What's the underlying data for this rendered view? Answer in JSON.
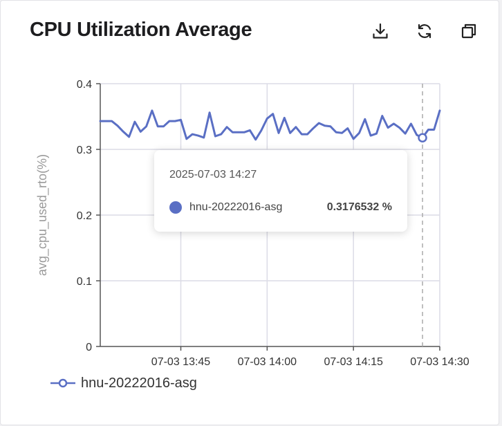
{
  "header": {
    "title": "CPU Utilization Average",
    "icons": [
      "download-icon",
      "refresh-icon",
      "copy-icon"
    ]
  },
  "colors": {
    "series": "#5a6fc4",
    "grid": "#dcdce6",
    "axis": "#555555"
  },
  "tooltip": {
    "time": "2025-07-03 14:27",
    "series_name": "hnu-20222016-asg",
    "value_text": "0.3176532 %"
  },
  "legend": {
    "label": "hnu-20222016-asg"
  },
  "chart_data": {
    "type": "line",
    "title": "CPU Utilization Average",
    "ylabel": "avg_cpu_used_rto(%)",
    "xlabel": "",
    "ylim": [
      0,
      0.4
    ],
    "yticks": [
      "0",
      "0.1",
      "0.2",
      "0.3",
      "0.4"
    ],
    "xlim": [
      "07-03 13:31",
      "07-03 14:30"
    ],
    "xticks": [
      "07-03 13:45",
      "07-03 14:00",
      "07-03 14:15",
      "07-03 14:30"
    ],
    "grid": true,
    "legend_position": "bottom-left",
    "highlight": {
      "x": "07-03 14:27",
      "y": 0.3176532
    },
    "series": [
      {
        "name": "hnu-20222016-asg",
        "x": [
          "13:31",
          "13:32",
          "13:33",
          "13:34",
          "13:35",
          "13:36",
          "13:37",
          "13:38",
          "13:39",
          "13:40",
          "13:41",
          "13:42",
          "13:43",
          "13:44",
          "13:45",
          "13:46",
          "13:47",
          "13:48",
          "13:49",
          "13:50",
          "13:51",
          "13:52",
          "13:53",
          "13:54",
          "13:55",
          "13:56",
          "13:57",
          "13:58",
          "13:59",
          "14:00",
          "14:01",
          "14:02",
          "14:03",
          "14:04",
          "14:05",
          "14:06",
          "14:07",
          "14:08",
          "14:09",
          "14:10",
          "14:11",
          "14:12",
          "14:13",
          "14:14",
          "14:15",
          "14:16",
          "14:17",
          "14:18",
          "14:19",
          "14:20",
          "14:21",
          "14:22",
          "14:23",
          "14:24",
          "14:25",
          "14:26",
          "14:27",
          "14:28",
          "14:29",
          "14:30"
        ],
        "values": [
          0.343,
          0.343,
          0.343,
          0.336,
          0.327,
          0.319,
          0.342,
          0.327,
          0.335,
          0.359,
          0.335,
          0.335,
          0.343,
          0.343,
          0.345,
          0.316,
          0.323,
          0.321,
          0.318,
          0.356,
          0.32,
          0.323,
          0.334,
          0.326,
          0.326,
          0.326,
          0.329,
          0.315,
          0.329,
          0.347,
          0.354,
          0.325,
          0.348,
          0.325,
          0.334,
          0.323,
          0.323,
          0.332,
          0.34,
          0.336,
          0.335,
          0.326,
          0.325,
          0.332,
          0.316,
          0.325,
          0.346,
          0.321,
          0.324,
          0.351,
          0.333,
          0.339,
          0.333,
          0.324,
          0.339,
          0.322,
          0.3176532,
          0.33,
          0.33,
          0.359
        ]
      }
    ]
  }
}
